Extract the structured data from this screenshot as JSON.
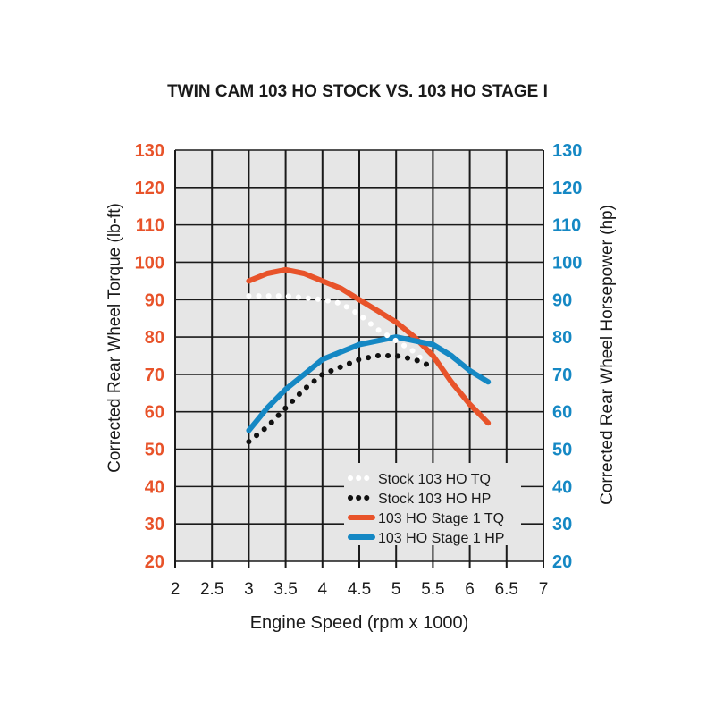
{
  "colors": {
    "background": "#ffffff",
    "plot_background": "#e6e6e6",
    "grid": "#1a1a1a",
    "torque_axis": "#e8532a",
    "hp_axis": "#1588c4",
    "text": "#1a1a1a"
  },
  "chart_data": {
    "type": "line",
    "title": "TWIN CAM 103 HO STOCK VS. 103 HO STAGE I",
    "xlabel": "Engine Speed (rpm x 1000)",
    "ylabel_left": "Corrected Rear Wheel Torque (lb-ft)",
    "ylabel_right": "Corrected Rear Wheel Horsepower (hp)",
    "xlim": [
      2,
      7
    ],
    "ylim": [
      20,
      130
    ],
    "x_ticks": [
      "2",
      "2.5",
      "3",
      "3.5",
      "4",
      "4.5",
      "5",
      "5.5",
      "6",
      "6.5",
      "7"
    ],
    "y_ticks_left": [
      "130",
      "120",
      "110",
      "100",
      "90",
      "80",
      "70",
      "60",
      "50",
      "40",
      "30",
      "20"
    ],
    "y_ticks_right": [
      "130",
      "120",
      "110",
      "100",
      "90",
      "80",
      "70",
      "60",
      "50",
      "40",
      "30",
      "20"
    ],
    "grid": true,
    "legend_position": "bottom-right",
    "series": [
      {
        "name": "Stock 103 HO TQ",
        "axis": "left",
        "color": "#ffffff",
        "style": "dotted",
        "x": [
          3.0,
          3.5,
          4.0,
          4.25,
          4.5,
          4.75,
          5.0,
          5.25,
          5.5
        ],
        "y": [
          91,
          91,
          90,
          89,
          86,
          82,
          79,
          76,
          71
        ]
      },
      {
        "name": "Stock 103 HO HP",
        "axis": "left",
        "color": "#111111",
        "style": "dotted",
        "x": [
          3.0,
          3.25,
          3.5,
          3.75,
          4.0,
          4.25,
          4.5,
          4.75,
          5.0,
          5.25,
          5.5
        ],
        "y": [
          52,
          56,
          61,
          66,
          70,
          72,
          74,
          75,
          75,
          74,
          72
        ]
      },
      {
        "name": "103 HO Stage 1 TQ",
        "axis": "left",
        "color": "#e8532a",
        "style": "solid",
        "x": [
          3.0,
          3.25,
          3.5,
          3.75,
          4.0,
          4.25,
          4.5,
          4.75,
          5.0,
          5.25,
          5.5,
          5.75,
          6.0,
          6.25
        ],
        "y": [
          95,
          97,
          98,
          97,
          95,
          93,
          90,
          87,
          84,
          80,
          75,
          68,
          62,
          57
        ]
      },
      {
        "name": "103 HO Stage 1 HP",
        "axis": "left",
        "color": "#1588c4",
        "style": "solid",
        "x": [
          3.0,
          3.25,
          3.5,
          3.75,
          4.0,
          4.25,
          4.5,
          4.75,
          5.0,
          5.25,
          5.5,
          5.75,
          6.0,
          6.25
        ],
        "y": [
          55,
          61,
          66,
          70,
          74,
          76,
          78,
          79,
          80,
          79,
          78,
          75,
          71,
          68
        ]
      }
    ]
  }
}
